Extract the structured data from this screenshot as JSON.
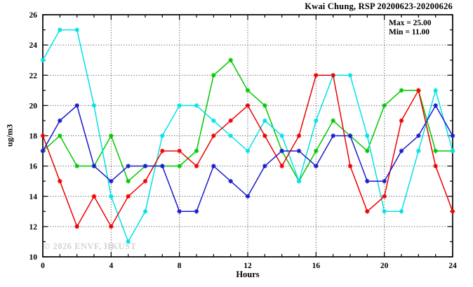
{
  "header": {
    "title": "Kwai Chung, RSP 20200623-20200626"
  },
  "annotation": {
    "max_label": "Max = 25.00",
    "min_label": "Min = 11.00"
  },
  "watermark": "© 2026 ENVF, HKUST",
  "chart_data": {
    "type": "line",
    "title": "Kwai Chung, RSP 20200623-20200626",
    "xlabel": "Hours",
    "ylabel": "ug/m3",
    "xlim": [
      0,
      24
    ],
    "ylim": [
      10,
      26
    ],
    "x_major_ticks": [
      0,
      4,
      8,
      12,
      16,
      20,
      24
    ],
    "x_minor_step": 1,
    "y_major_ticks": [
      10,
      12,
      14,
      16,
      18,
      20,
      22,
      24,
      26
    ],
    "y_minor_step": 1,
    "grid": "dotted",
    "x_gridlines": [
      4,
      8,
      12,
      16,
      20
    ],
    "y_gridlines": [
      12,
      14,
      16,
      18,
      20,
      22,
      24
    ],
    "legend": "none",
    "marker": "star",
    "stats": {
      "max": 25.0,
      "min": 11.0
    },
    "x": [
      0,
      1,
      2,
      3,
      4,
      5,
      6,
      7,
      8,
      9,
      10,
      11,
      12,
      13,
      14,
      15,
      16,
      17,
      18,
      19,
      20,
      21,
      22,
      23,
      24
    ],
    "series": [
      {
        "name": "series-green",
        "color": "#00c800",
        "values": [
          17,
          18,
          16,
          16,
          18,
          15,
          16,
          16,
          16,
          17,
          22,
          23,
          21,
          20,
          17,
          15,
          17,
          19,
          18,
          17,
          20,
          21,
          21,
          17,
          17
        ]
      },
      {
        "name": "series-cyan",
        "color": "#00e1e8",
        "values": [
          23,
          25,
          25,
          20,
          14,
          11,
          13,
          18,
          20,
          20,
          19,
          18,
          17,
          19,
          18,
          15,
          19,
          22,
          22,
          18,
          13,
          13,
          17,
          21,
          17
        ]
      },
      {
        "name": "series-red",
        "color": "#ee0000",
        "values": [
          18,
          15,
          12,
          14,
          12,
          14,
          15,
          17,
          17,
          16,
          18,
          19,
          20,
          18,
          16,
          18,
          22,
          22,
          16,
          13,
          14,
          19,
          21,
          16,
          13
        ]
      },
      {
        "name": "series-blue",
        "color": "#1a1acd",
        "values": [
          17,
          19,
          20,
          16,
          15,
          16,
          16,
          16,
          13,
          13,
          16,
          15,
          14,
          16,
          17,
          17,
          16,
          18,
          18,
          15,
          15,
          17,
          18,
          20,
          18
        ]
      }
    ]
  }
}
